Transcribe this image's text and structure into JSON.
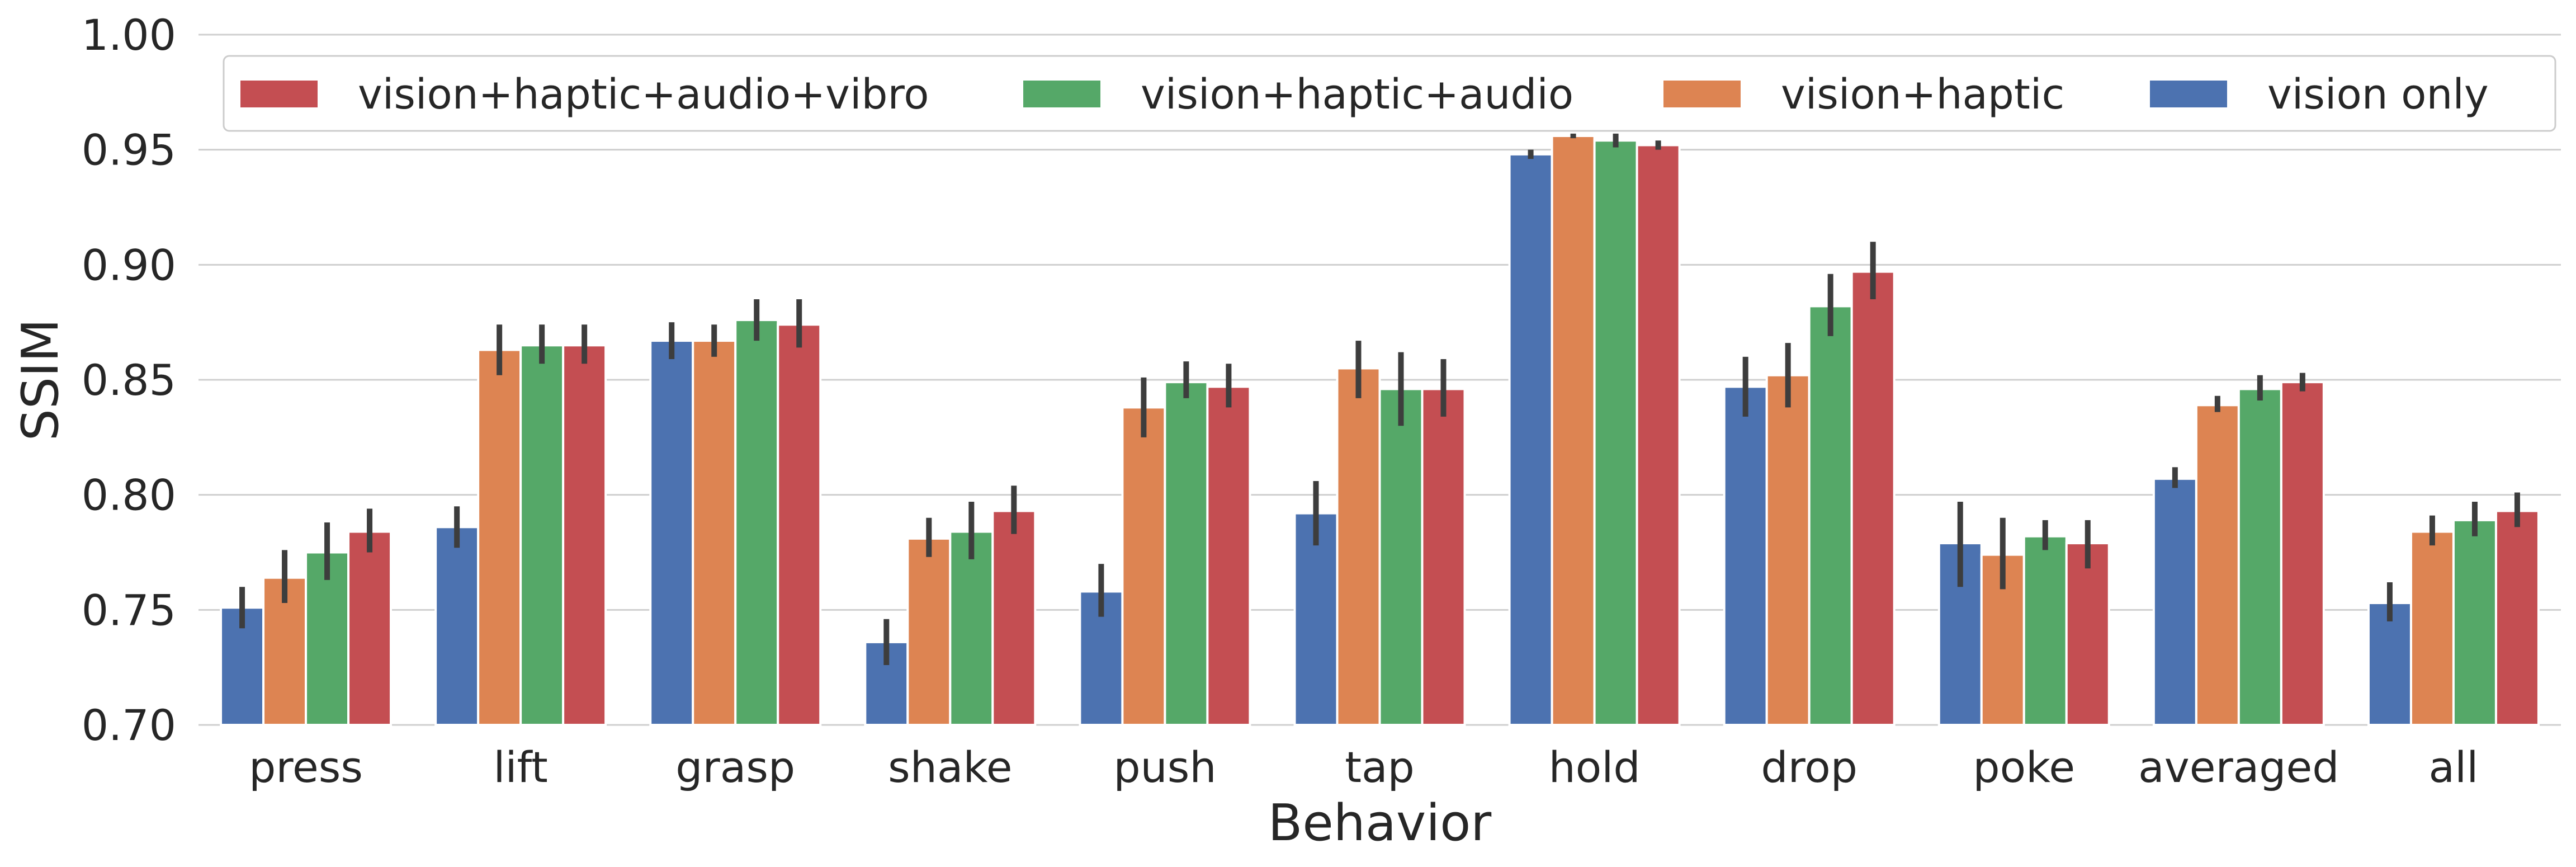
{
  "chart_data": {
    "type": "bar",
    "xlabel": "Behavior",
    "ylabel": "SSIM",
    "ylim": [
      0.7,
      1.0
    ],
    "yticks": [
      "0.70",
      "0.75",
      "0.80",
      "0.85",
      "0.90",
      "0.95",
      "1.00"
    ],
    "grid": true,
    "legend_position": "top",
    "categories": [
      "press",
      "lift",
      "grasp",
      "shake",
      "push",
      "tap",
      "hold",
      "drop",
      "poke",
      "averaged",
      "all"
    ],
    "series": [
      {
        "name": "vision only",
        "color": "#4c72b0",
        "values": [
          0.751,
          0.786,
          0.867,
          0.736,
          0.758,
          0.792,
          0.948,
          0.847,
          0.779,
          0.807,
          0.753
        ],
        "errors": [
          [
            0.742,
            0.76
          ],
          [
            0.777,
            0.795
          ],
          [
            0.859,
            0.875
          ],
          [
            0.726,
            0.746
          ],
          [
            0.747,
            0.77
          ],
          [
            0.778,
            0.806
          ],
          [
            0.946,
            0.95
          ],
          [
            0.834,
            0.86
          ],
          [
            0.76,
            0.797
          ],
          [
            0.803,
            0.812
          ],
          [
            0.745,
            0.762
          ]
        ]
      },
      {
        "name": "vision+haptic",
        "color": "#dd8452",
        "values": [
          0.764,
          0.863,
          0.867,
          0.781,
          0.838,
          0.855,
          0.956,
          0.852,
          0.774,
          0.839,
          0.784
        ],
        "errors": [
          [
            0.753,
            0.776
          ],
          [
            0.852,
            0.874
          ],
          [
            0.86,
            0.874
          ],
          [
            0.773,
            0.79
          ],
          [
            0.825,
            0.851
          ],
          [
            0.842,
            0.867
          ],
          [
            0.955,
            0.957
          ],
          [
            0.838,
            0.866
          ],
          [
            0.759,
            0.79
          ],
          [
            0.836,
            0.843
          ],
          [
            0.778,
            0.791
          ]
        ]
      },
      {
        "name": "vision+haptic+audio",
        "color": "#55a868",
        "values": [
          0.775,
          0.865,
          0.876,
          0.784,
          0.849,
          0.846,
          0.954,
          0.882,
          0.782,
          0.846,
          0.789
        ],
        "errors": [
          [
            0.763,
            0.788
          ],
          [
            0.857,
            0.874
          ],
          [
            0.867,
            0.885
          ],
          [
            0.772,
            0.797
          ],
          [
            0.842,
            0.858
          ],
          [
            0.83,
            0.862
          ],
          [
            0.951,
            0.957
          ],
          [
            0.869,
            0.896
          ],
          [
            0.776,
            0.789
          ],
          [
            0.841,
            0.852
          ],
          [
            0.782,
            0.797
          ]
        ]
      },
      {
        "name": "vision+haptic+audio+vibro",
        "color": "#c44e52",
        "values": [
          0.784,
          0.865,
          0.874,
          0.793,
          0.847,
          0.846,
          0.952,
          0.897,
          0.779,
          0.849,
          0.793
        ],
        "errors": [
          [
            0.775,
            0.794
          ],
          [
            0.857,
            0.874
          ],
          [
            0.864,
            0.885
          ],
          [
            0.783,
            0.804
          ],
          [
            0.838,
            0.857
          ],
          [
            0.834,
            0.859
          ],
          [
            0.95,
            0.954
          ],
          [
            0.885,
            0.91
          ],
          [
            0.768,
            0.789
          ],
          [
            0.845,
            0.853
          ],
          [
            0.786,
            0.801
          ]
        ]
      }
    ],
    "legend_order": [
      "vision+haptic+audio+vibro",
      "vision+haptic+audio",
      "vision+haptic",
      "vision only"
    ]
  }
}
